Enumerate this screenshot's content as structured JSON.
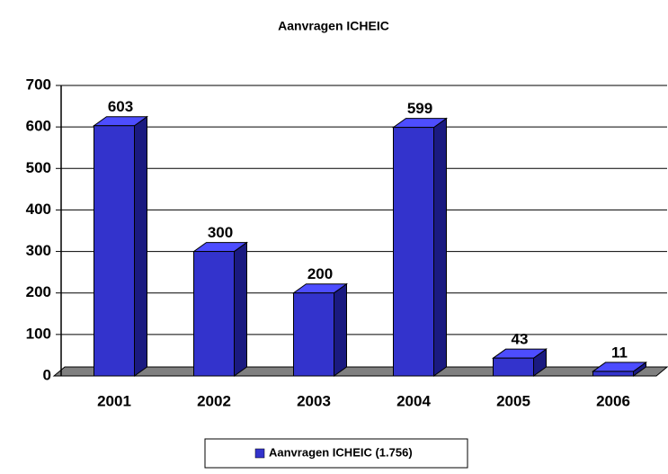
{
  "chart_data": {
    "type": "bar3d",
    "title": "Aanvragen ICHEIC",
    "categories": [
      "2001",
      "2002",
      "2003",
      "2004",
      "2005",
      "2006"
    ],
    "series": [
      {
        "name": "Aanvragen ICHEIC (1.756)",
        "color": "#3333cc",
        "values": [
          603,
          300,
          200,
          599,
          43,
          11
        ]
      }
    ],
    "ylim": [
      0,
      700
    ],
    "yticks": [
      0,
      100,
      200,
      300,
      400,
      500,
      600,
      700
    ],
    "grid": true
  }
}
